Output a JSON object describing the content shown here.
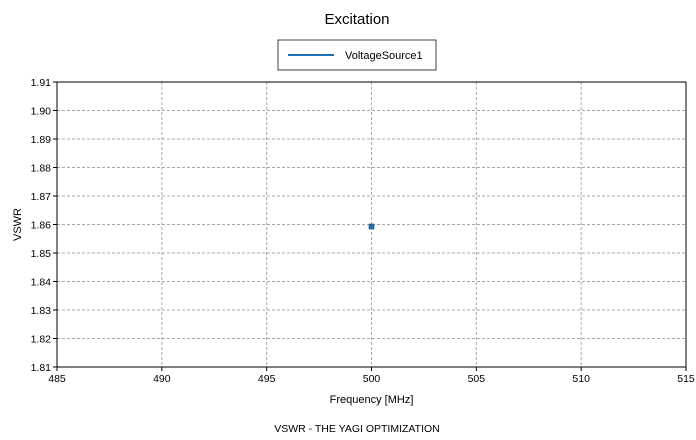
{
  "chart_data": {
    "type": "scatter",
    "title": "Excitation",
    "caption": "VSWR - THE YAGI OPTIMIZATION",
    "xlabel": "Frequency [MHz]",
    "ylabel": "VSWR",
    "xlim": [
      485,
      515
    ],
    "ylim": [
      1.81,
      1.91
    ],
    "xticks": [
      "485",
      "490",
      "495",
      "500",
      "505",
      "510",
      "515"
    ],
    "yticks": [
      "1.81",
      "1.82",
      "1.83",
      "1.84",
      "1.85",
      "1.86",
      "1.87",
      "1.88",
      "1.89",
      "1.90",
      "1.91"
    ],
    "grid": true,
    "legend_position": "top-center",
    "series": [
      {
        "name": "VoltageSource1",
        "color": "#1f6fb4",
        "points": [
          {
            "x": 500,
            "y": 1.8593
          }
        ]
      }
    ]
  }
}
